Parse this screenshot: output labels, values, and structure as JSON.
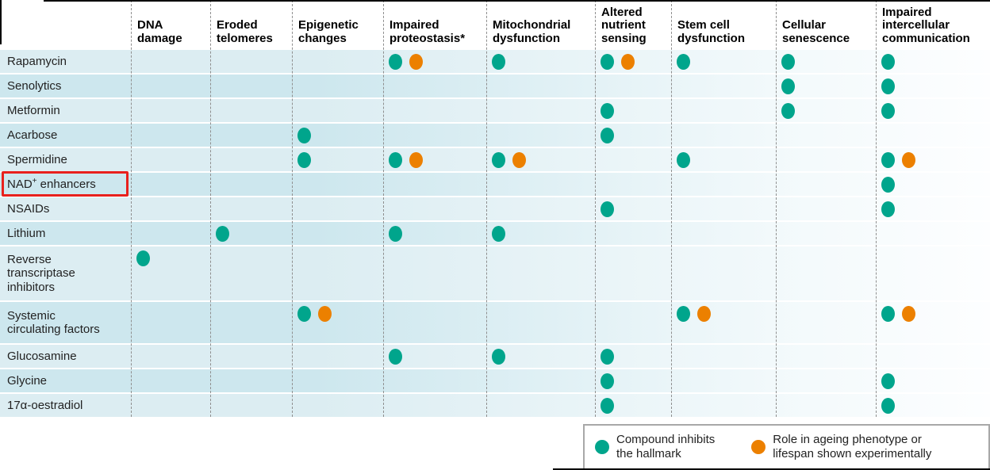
{
  "colors": {
    "inhibits_dot": "#00a58c",
    "experimental_dot": "#ec8000",
    "row_band_light": "#dcedf2",
    "row_band_dark": "#cde7ee",
    "row_band_fade": "#fdfeff",
    "highlight_box": "#e8211d",
    "column_divider": "#8f8f8f",
    "legend_border": "#a8a8a8",
    "frame_line": "#000000"
  },
  "chart_data": {
    "type": "table",
    "marker_key": {
      "T": "Compound inhibits the hallmark",
      "O": "Role in ageing phenotype or lifespan shown experimentally"
    },
    "columns": [
      "DNA\ndamage",
      "Eroded\ntelomeres",
      "Epigenetic\nchanges",
      "Impaired\nproteostasis*",
      "Mitochondrial\ndysfunction",
      "Altered\nnutrient\nsensing",
      "Stem cell\ndysfunction",
      "Cellular\nsenescence",
      "Impaired\nintercellular\ncommunication"
    ],
    "rows": [
      {
        "label": "Rapamycin",
        "cells": [
          "",
          "",
          "",
          "TO",
          "T",
          "TO",
          "T",
          "T",
          "T"
        ]
      },
      {
        "label": "Senolytics",
        "cells": [
          "",
          "",
          "",
          "",
          "",
          "",
          "",
          "T",
          "T"
        ]
      },
      {
        "label": "Metformin",
        "cells": [
          "",
          "",
          "",
          "",
          "",
          "T",
          "",
          "T",
          "T"
        ]
      },
      {
        "label": "Acarbose",
        "cells": [
          "",
          "",
          "T",
          "",
          "",
          "T",
          "",
          "",
          ""
        ]
      },
      {
        "label": "Spermidine",
        "cells": [
          "",
          "",
          "T",
          "TO",
          "TO",
          "",
          "T",
          "",
          "TO"
        ]
      },
      {
        "label": "NAD+ enhancers",
        "label_parts": {
          "base": "NAD",
          "sup": "+",
          "rest": " enhancers"
        },
        "highlighted": true,
        "cells": [
          "",
          "",
          "",
          "",
          "",
          "",
          "",
          "",
          "T"
        ]
      },
      {
        "label": "NSAIDs",
        "cells": [
          "",
          "",
          "",
          "",
          "",
          "T",
          "",
          "",
          "T"
        ]
      },
      {
        "label": "Lithium",
        "cells": [
          "",
          "T",
          "",
          "T",
          "T",
          "",
          "",
          "",
          ""
        ]
      },
      {
        "label": "Reverse\ntranscriptase\ninhibitors",
        "cells": [
          "T",
          "",
          "",
          "",
          "",
          "",
          "",
          "",
          ""
        ]
      },
      {
        "label": "Systemic\ncirculating factors",
        "cells": [
          "",
          "",
          "TO",
          "",
          "",
          "",
          "TO",
          "",
          "TO"
        ]
      },
      {
        "label": "Glucosamine",
        "cells": [
          "",
          "",
          "",
          "T",
          "T",
          "T",
          "",
          "",
          ""
        ]
      },
      {
        "label": "Glycine",
        "cells": [
          "",
          "",
          "",
          "",
          "",
          "T",
          "",
          "",
          "T"
        ]
      },
      {
        "label": "17α-oestradiol",
        "cells": [
          "",
          "",
          "",
          "",
          "",
          "T",
          "",
          "",
          "T"
        ]
      }
    ],
    "highlighted_row": "NAD+ enhancers",
    "legend_position": "bottom-right"
  },
  "legend": {
    "items": [
      {
        "marker": "T",
        "label": "Compound inhibits\nthe hallmark"
      },
      {
        "marker": "O",
        "label": "Role in ageing phenotype or\nlifespan shown experimentally"
      }
    ]
  }
}
